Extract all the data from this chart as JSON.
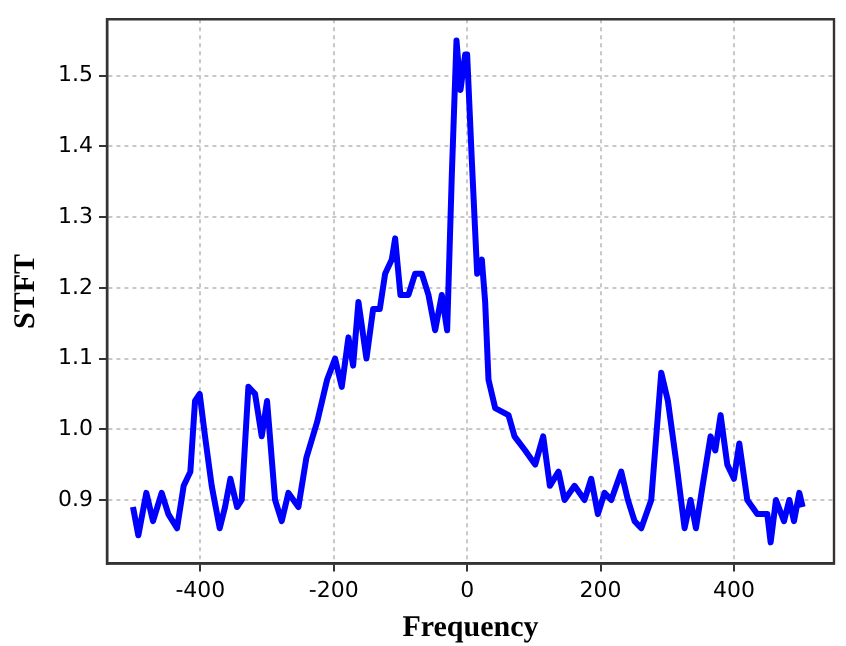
{
  "chart_data": {
    "type": "line",
    "xlabel": "Frequency",
    "ylabel": "STFT",
    "xlim": [
      -540,
      550
    ],
    "ylim": [
      0.81,
      1.58
    ],
    "xticks": [
      -400,
      -200,
      0,
      200,
      400
    ],
    "yticks": [
      0.9,
      {
        "value": 1,
        "label": "1.0"
      },
      1.1,
      1.2,
      1.3,
      1.4,
      1.5
    ],
    "grid": true,
    "legend": false,
    "marker": "none",
    "line_style": "solid",
    "series": [
      {
        "color": "#0000ff",
        "x": [
          -501,
          -493,
          -481,
          -471,
          -458,
          -448,
          -435,
          -425,
          -415,
          -408,
          -401,
          -393,
          -383,
          -371,
          -363,
          -355,
          -345,
          -338,
          -328,
          -318,
          -308,
          -300,
          -288,
          -278,
          -268,
          -253,
          -241,
          -225,
          -210,
          -198,
          -188,
          -178,
          -171,
          -163,
          -151,
          -141,
          -131,
          -123,
          -113,
          -108,
          -100,
          -88,
          -78,
          -68,
          -58,
          -48,
          -38,
          -30,
          -23,
          -16,
          -10,
          -3,
          0,
          7,
          15,
          22,
          27,
          32,
          42,
          62,
          71,
          87,
          102,
          114,
          124,
          137,
          146,
          161,
          176,
          186,
          196,
          206,
          216,
          231,
          241,
          251,
          261,
          276,
          291,
          301,
          314,
          326,
          335,
          343,
          353,
          365,
          372,
          380,
          390,
          400,
          408,
          420,
          435,
          450,
          455,
          463,
          475,
          483,
          490,
          498,
          503
        ],
        "values": [
          0.89,
          0.85,
          0.91,
          0.87,
          0.91,
          0.88,
          0.86,
          0.92,
          0.94,
          1.04,
          1.05,
          0.99,
          0.92,
          0.86,
          0.89,
          0.93,
          0.89,
          0.9,
          1.06,
          1.05,
          0.99,
          1.04,
          0.9,
          0.87,
          0.91,
          0.89,
          0.96,
          1.01,
          1.07,
          1.1,
          1.06,
          1.13,
          1.09,
          1.18,
          1.1,
          1.17,
          1.17,
          1.22,
          1.24,
          1.27,
          1.19,
          1.19,
          1.22,
          1.22,
          1.19,
          1.14,
          1.19,
          1.14,
          1.36,
          1.55,
          1.48,
          1.53,
          1.53,
          1.38,
          1.22,
          1.24,
          1.18,
          1.07,
          1.03,
          1.02,
          0.99,
          0.97,
          0.95,
          0.99,
          0.92,
          0.94,
          0.9,
          0.92,
          0.9,
          0.93,
          0.88,
          0.91,
          0.9,
          0.94,
          0.9,
          0.87,
          0.86,
          0.9,
          1.08,
          1.04,
          0.95,
          0.86,
          0.9,
          0.86,
          0.92,
          0.99,
          0.97,
          1.02,
          0.95,
          0.93,
          0.98,
          0.9,
          0.88,
          0.88,
          0.84,
          0.9,
          0.87,
          0.9,
          0.87,
          0.91,
          0.89
        ]
      }
    ]
  }
}
